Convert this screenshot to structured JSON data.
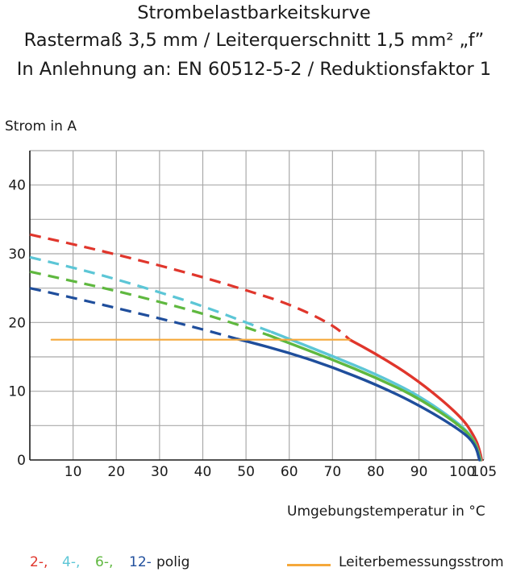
{
  "title_lines": [
    "Strombelastbarkeitskurve",
    "Rastermaß 3,5 mm / Leiterquerschnitt 1,5 mm² „f”",
    "In Anlehnung an: EN 60512-5-2 / Reduktionsfaktor 1"
  ],
  "legend": {
    "pole_labels": [
      "2-,",
      "4-,",
      "6-,",
      "12-"
    ],
    "pole_suffix": "polig",
    "reference_label": "Leiterbemessungsstrom"
  },
  "colors": {
    "two_pole": "#e0362c",
    "four_pole": "#5cc6d6",
    "six_pole": "#5fb83f",
    "twelve_pole": "#1f4e9c",
    "reference": "#f5a83a",
    "grid": "#a9a9a9"
  },
  "chart_data": {
    "type": "line",
    "ylabel": "Strom in A",
    "xlabel": "Umgebungstemperatur in °C",
    "xlim": [
      0,
      105
    ],
    "ylim": [
      0,
      45
    ],
    "xticks": [
      10,
      20,
      30,
      40,
      50,
      60,
      70,
      80,
      90,
      100,
      105
    ],
    "xtick_labels": [
      "10",
      "20",
      "30",
      "40",
      "50",
      "60",
      "70",
      "80",
      "90",
      "100",
      "105"
    ],
    "yticks": [
      0,
      10,
      20,
      30,
      40
    ],
    "ytick_labels": [
      "0",
      "10",
      "20",
      "30",
      "40"
    ],
    "series": [
      {
        "name": "2-polig",
        "color": "#e0362c",
        "dashed": [
          [
            0,
            32.8
          ],
          [
            10,
            31.4
          ],
          [
            20,
            29.9
          ],
          [
            30,
            28.3
          ],
          [
            40,
            26.6
          ],
          [
            50,
            24.7
          ],
          [
            60,
            22.7
          ],
          [
            70,
            19.7
          ],
          [
            74,
            17.5
          ]
        ],
        "solid": [
          [
            74,
            17.5
          ],
          [
            80,
            15.5
          ],
          [
            90,
            11.5
          ],
          [
            100,
            6.2
          ],
          [
            103,
            3.2
          ],
          [
            104,
            1.5
          ],
          [
            104.5,
            0
          ]
        ]
      },
      {
        "name": "4-polig",
        "color": "#5cc6d6",
        "dashed": [
          [
            0,
            29.5
          ],
          [
            10,
            28.0
          ],
          [
            20,
            26.3
          ],
          [
            30,
            24.4
          ],
          [
            40,
            22.4
          ],
          [
            50,
            20.0
          ],
          [
            56,
            18.6
          ]
        ],
        "solid": [
          [
            56,
            18.6
          ],
          [
            60,
            17.6
          ],
          [
            70,
            15.1
          ],
          [
            80,
            12.5
          ],
          [
            90,
            9.4
          ],
          [
            100,
            5.0
          ],
          [
            103,
            2.7
          ],
          [
            104.3,
            0
          ]
        ]
      },
      {
        "name": "6-polig",
        "color": "#5fb83f",
        "dashed": [
          [
            0,
            27.4
          ],
          [
            10,
            26.0
          ],
          [
            20,
            24.6
          ],
          [
            30,
            23.0
          ],
          [
            40,
            21.3
          ],
          [
            50,
            19.3
          ],
          [
            55,
            18.2
          ]
        ],
        "solid": [
          [
            55,
            18.2
          ],
          [
            60,
            17.0
          ],
          [
            70,
            14.6
          ],
          [
            80,
            12.0
          ],
          [
            90,
            9.0
          ],
          [
            100,
            4.8
          ],
          [
            103,
            2.6
          ],
          [
            104.2,
            0
          ]
        ]
      },
      {
        "name": "12-polig",
        "color": "#1f4e9c",
        "dashed": [
          [
            0,
            25.0
          ],
          [
            10,
            23.6
          ],
          [
            20,
            22.1
          ],
          [
            30,
            20.6
          ],
          [
            40,
            19.0
          ],
          [
            48,
            17.6
          ]
        ],
        "solid": [
          [
            48,
            17.6
          ],
          [
            50,
            17.3
          ],
          [
            60,
            15.6
          ],
          [
            70,
            13.5
          ],
          [
            80,
            11.0
          ],
          [
            90,
            8.0
          ],
          [
            100,
            4.2
          ],
          [
            103,
            2.3
          ],
          [
            104,
            0
          ]
        ]
      },
      {
        "name": "Leiterbemessungsstrom",
        "color": "#f5a83a",
        "solid": [
          [
            5,
            17.5
          ],
          [
            74,
            17.5
          ]
        ]
      }
    ]
  }
}
